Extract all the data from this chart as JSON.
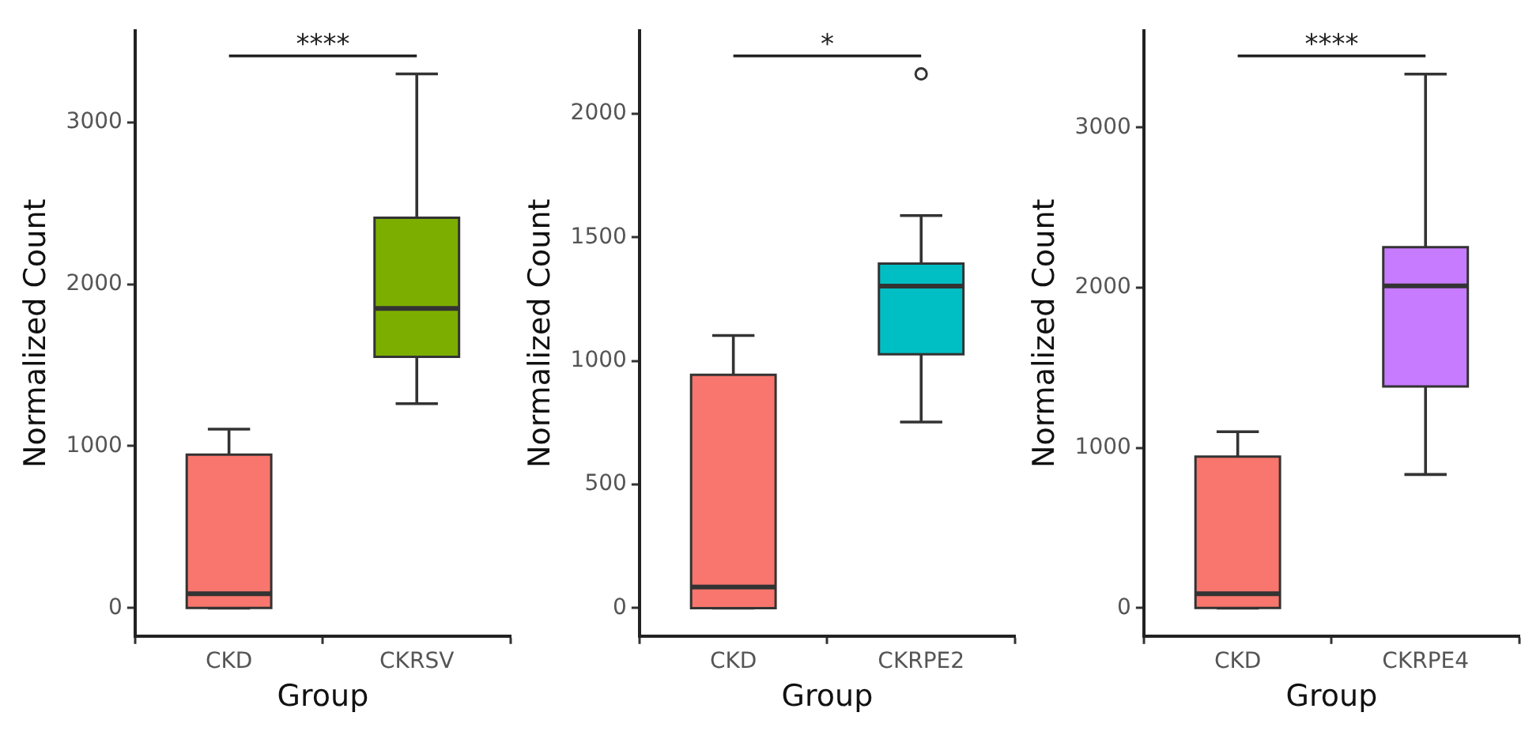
{
  "chart_data": [
    {
      "type": "box",
      "categories": [
        "CKD",
        "CKRSV"
      ],
      "colors": [
        "#f8766d",
        "#7cae00"
      ],
      "xlabel": "Group",
      "ylabel": "Normalized Count",
      "ylim": [
        -173,
        3566
      ],
      "yticks": [
        0,
        1000,
        2000,
        3000
      ],
      "grid": false,
      "legend": false,
      "annotations": [
        "****"
      ],
      "boxes": [
        {
          "low": 0,
          "q1": 0,
          "median": 88,
          "q3": 947,
          "high": 1105
        },
        {
          "low": 1262,
          "q1": 1552,
          "median": 1851,
          "q3": 2411,
          "high": 3299
        }
      ]
    },
    {
      "type": "box",
      "categories": [
        "CKD",
        "CKRPE2"
      ],
      "colors": [
        "#f8766d",
        "#00bfc4"
      ],
      "xlabel": "Group",
      "ylabel": "Normalized Count",
      "ylim": [
        -113,
        2336
      ],
      "yticks": [
        0,
        500,
        1000,
        1500,
        2000
      ],
      "grid": false,
      "legend": false,
      "annotations": [
        "*"
      ],
      "boxes": [
        {
          "low": 0,
          "q1": 0,
          "median": 85,
          "q3": 944,
          "high": 1103
        },
        {
          "low": 753,
          "q1": 1027,
          "median": 1303,
          "q3": 1394,
          "high": 1588,
          "outliers": [
            2161
          ]
        }
      ]
    },
    {
      "type": "box",
      "categories": [
        "CKD",
        "CKRPE4"
      ],
      "colors": [
        "#f8766d",
        "#c77cff"
      ],
      "xlabel": "Group",
      "ylabel": "Normalized Count",
      "ylim": [
        -175,
        3605
      ],
      "yticks": [
        0,
        1000,
        2000,
        3000
      ],
      "grid": false,
      "legend": false,
      "annotations": [
        "****"
      ],
      "boxes": [
        {
          "low": 0,
          "q1": 0,
          "median": 89,
          "q3": 945,
          "high": 1101
        },
        {
          "low": 834,
          "q1": 1384,
          "median": 2011,
          "q3": 2253,
          "high": 3334
        }
      ]
    }
  ]
}
